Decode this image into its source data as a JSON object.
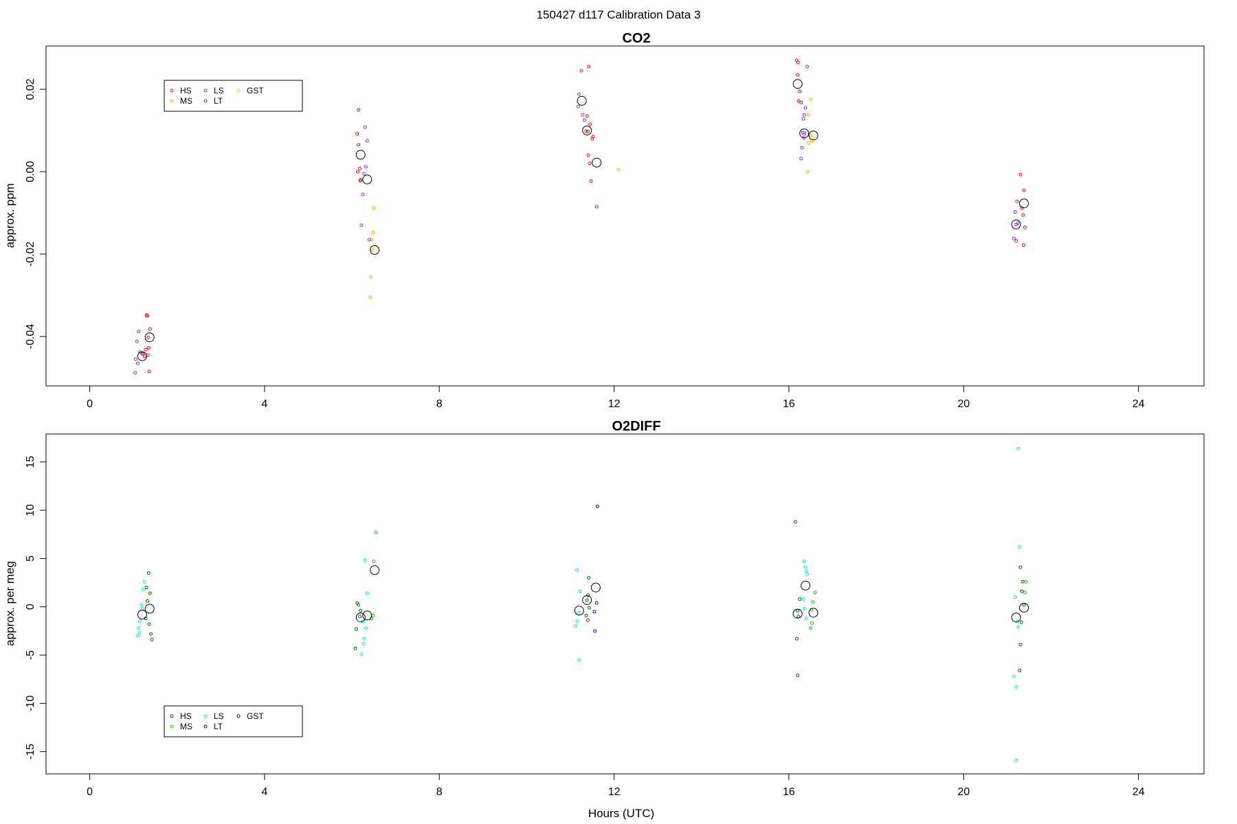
{
  "figure_title": "150427   d117   Calibration Data 3",
  "chart_data": [
    {
      "type": "scatter",
      "title": "CO2",
      "xlabel": "",
      "ylabel": "approx. ppm",
      "xlim": [
        -1,
        25.5
      ],
      "ylim": [
        -0.052,
        0.0305
      ],
      "xticks": [
        0,
        4,
        8,
        12,
        16,
        20,
        24
      ],
      "yticks": [
        -0.04,
        -0.02,
        0.0,
        0.02
      ],
      "ytick_labels": [
        "-0.04",
        "-0.02",
        "0.00",
        "0.02"
      ],
      "legend": {
        "placement": "top-left",
        "entries": [
          {
            "label": "HS",
            "color": "#ff0000"
          },
          {
            "label": "MS",
            "color": "#ffa500"
          },
          {
            "label": "LS",
            "color": "#a020f0"
          },
          {
            "label": "LT",
            "color": "#b22222"
          },
          {
            "label": "GST",
            "color": "#ffd700"
          }
        ]
      },
      "series": [
        {
          "name": "HS",
          "color": "#ff0000",
          "points": [
            [
              1.3,
              -0.0348
            ],
            [
              1.32,
              -0.035
            ],
            [
              1.38,
              -0.0382
            ],
            [
              1.35,
              -0.0428
            ],
            [
              1.28,
              -0.0432
            ],
            [
              1.33,
              -0.0445
            ],
            [
              1.36,
              -0.0485
            ],
            [
              1.25,
              -0.0448
            ],
            [
              6.15,
              0.015
            ],
            [
              6.12,
              0.0092
            ],
            [
              6.15,
              0.0065
            ],
            [
              6.18,
              0.0008
            ],
            [
              6.13,
              0.0
            ],
            [
              6.2,
              -0.002
            ],
            [
              11.42,
              0.0255
            ],
            [
              11.38,
              0.0135
            ],
            [
              11.45,
              0.0115
            ],
            [
              11.36,
              0.0098
            ],
            [
              11.5,
              0.008
            ],
            [
              11.41,
              0.004
            ],
            [
              11.44,
              0.002
            ],
            [
              11.47,
              -0.0023
            ],
            [
              16.18,
              0.027
            ],
            [
              16.21,
              0.0265
            ],
            [
              16.2,
              0.0235
            ],
            [
              16.25,
              0.0195
            ],
            [
              16.22,
              0.0172
            ],
            [
              16.28,
              0.0168
            ],
            [
              21.3,
              -0.0007
            ],
            [
              21.38,
              -0.0045
            ],
            [
              21.33,
              -0.0088
            ],
            [
              21.36,
              -0.0105
            ],
            [
              21.4,
              -0.0135
            ],
            [
              21.37,
              -0.0178
            ]
          ]
        },
        {
          "name": "MS",
          "color": "#ffa500",
          "points": [
            [
              6.5,
              -0.0088
            ],
            [
              6.48,
              -0.0148
            ],
            [
              6.45,
              -0.0165
            ],
            [
              6.47,
              -0.019
            ],
            [
              6.43,
              -0.0255
            ],
            [
              6.42,
              -0.0305
            ],
            [
              16.5,
              0.0175
            ],
            [
              16.45,
              0.0138
            ],
            [
              16.48,
              0.0088
            ],
            [
              16.52,
              0.0075
            ],
            [
              16.45,
              0.007
            ],
            [
              16.43,
              0.0
            ],
            [
              12.1,
              0.0005
            ]
          ]
        },
        {
          "name": "LS",
          "color": "#a020f0",
          "points": [
            [
              1.12,
              -0.0388
            ],
            [
              1.08,
              -0.0412
            ],
            [
              1.15,
              -0.0438
            ],
            [
              1.05,
              -0.0455
            ],
            [
              1.1,
              -0.0465
            ],
            [
              1.04,
              -0.0488
            ],
            [
              1.2,
              -0.0442
            ],
            [
              6.3,
              0.0108
            ],
            [
              6.35,
              0.0075
            ],
            [
              6.32,
              0.0012
            ],
            [
              6.28,
              -0.0005
            ],
            [
              6.25,
              -0.0055
            ],
            [
              6.22,
              -0.013
            ],
            [
              6.4,
              -0.0165
            ],
            [
              11.25,
              0.0245
            ],
            [
              11.2,
              0.0188
            ],
            [
              11.18,
              0.0158
            ],
            [
              11.28,
              0.0138
            ],
            [
              11.32,
              0.0125
            ],
            [
              11.6,
              -0.0085
            ],
            [
              16.42,
              0.0255
            ],
            [
              16.38,
              0.0155
            ],
            [
              16.35,
              0.0138
            ],
            [
              16.33,
              0.0128
            ],
            [
              16.32,
              0.0095
            ],
            [
              16.36,
              0.0092
            ],
            [
              16.3,
              0.0058
            ],
            [
              16.28,
              0.0032
            ],
            [
              16.34,
              0.0082
            ],
            [
              21.18,
              -0.0098
            ],
            [
              21.22,
              -0.0072
            ],
            [
              21.24,
              -0.0125
            ],
            [
              21.2,
              -0.0128
            ],
            [
              21.15,
              -0.0162
            ],
            [
              21.2,
              -0.0168
            ]
          ]
        },
        {
          "name": "LT",
          "color": "#b22222",
          "points": [
            [
              1.34,
              -0.0402
            ],
            [
              1.22,
              -0.0442
            ],
            [
              6.19,
              -0.0022
            ],
            [
              11.4,
              0.0098
            ],
            [
              11.52,
              0.0085
            ]
          ]
        },
        {
          "name": "GST",
          "color": "#ffd700",
          "points": [
            [
              16.56,
              0.0082
            ],
            [
              6.55,
              -0.0185
            ]
          ]
        },
        {
          "name": "mean",
          "color": "#000000",
          "points": [
            [
              1.2,
              -0.0448
            ],
            [
              1.37,
              -0.0402
            ],
            [
              6.2,
              0.0041
            ],
            [
              6.35,
              -0.0019
            ],
            [
              6.52,
              -0.019
            ],
            [
              11.26,
              0.0172
            ],
            [
              11.38,
              0.01
            ],
            [
              11.6,
              0.0022
            ],
            [
              16.2,
              0.0213
            ],
            [
              16.35,
              0.0093
            ],
            [
              16.56,
              0.0088
            ],
            [
              21.2,
              -0.0128
            ],
            [
              21.38,
              -0.0077
            ]
          ]
        }
      ]
    },
    {
      "type": "scatter",
      "title": "O2DIFF",
      "xlabel": "Hours (UTC)",
      "ylabel": "approx. per meg",
      "xlim": [
        -1,
        25.5
      ],
      "ylim": [
        -17.3,
        17.9
      ],
      "xticks": [
        0,
        4,
        8,
        12,
        16,
        20,
        24
      ],
      "yticks": [
        -15,
        -10,
        -5,
        0,
        5,
        10,
        15
      ],
      "ytick_labels": [
        "-15",
        "-10",
        "-5",
        "0",
        "5",
        "10",
        "15"
      ],
      "legend": {
        "placement": "bottom-left",
        "entries": [
          {
            "label": "HS",
            "color": "#006400"
          },
          {
            "label": "MS",
            "color": "#00cd00"
          },
          {
            "label": "LS",
            "color": "#00e5ee"
          },
          {
            "label": "LT",
            "color": "#0000ff"
          },
          {
            "label": "GST",
            "color": "#00008b"
          }
        ]
      },
      "series": [
        {
          "name": "HS",
          "color": "#006400",
          "points": [
            [
              1.35,
              3.5
            ],
            [
              1.3,
              2.0
            ],
            [
              1.38,
              1.4
            ],
            [
              1.32,
              0.6
            ],
            [
              1.28,
              -1.2
            ],
            [
              1.36,
              -1.8
            ],
            [
              1.4,
              -2.8
            ],
            [
              1.42,
              -3.4
            ],
            [
              6.12,
              0.4
            ],
            [
              6.15,
              0.2
            ],
            [
              6.2,
              -0.4
            ],
            [
              6.18,
              -1.0
            ],
            [
              6.1,
              -2.3
            ],
            [
              6.08,
              -4.3
            ],
            [
              11.42,
              3.0
            ],
            [
              11.4,
              1.2
            ],
            [
              11.38,
              0.7
            ],
            [
              11.43,
              -0.1
            ],
            [
              11.36,
              -0.9
            ],
            [
              11.4,
              -1.4
            ],
            [
              16.15,
              8.8
            ],
            [
              16.25,
              0.8
            ],
            [
              16.2,
              -0.4
            ],
            [
              16.22,
              -1.0
            ],
            [
              16.18,
              -3.3
            ],
            [
              16.2,
              -7.1
            ],
            [
              21.3,
              4.1
            ],
            [
              21.35,
              2.6
            ],
            [
              21.33,
              1.6
            ],
            [
              21.38,
              0.2
            ],
            [
              21.32,
              -1.6
            ],
            [
              21.3,
              -3.9
            ],
            [
              21.28,
              -6.6
            ]
          ]
        },
        {
          "name": "MS",
          "color": "#00cd00",
          "points": [
            [
              6.55,
              7.7
            ],
            [
              6.5,
              4.7
            ],
            [
              6.48,
              -0.9
            ],
            [
              6.45,
              -1.2
            ],
            [
              16.6,
              1.5
            ],
            [
              16.55,
              0.5
            ],
            [
              16.52,
              -0.3
            ],
            [
              16.53,
              -1.7
            ],
            [
              16.5,
              -2.2
            ],
            [
              21.4,
              1.5
            ],
            [
              21.42,
              2.6
            ]
          ]
        },
        {
          "name": "LS",
          "color": "#00e5ee",
          "points": [
            [
              1.25,
              2.6
            ],
            [
              1.22,
              1.8
            ],
            [
              1.18,
              0.2
            ],
            [
              1.2,
              -0.2
            ],
            [
              1.15,
              -1.5
            ],
            [
              1.12,
              -2.2
            ],
            [
              1.14,
              -2.7
            ],
            [
              1.1,
              -3.0
            ],
            [
              6.3,
              4.8
            ],
            [
              6.35,
              1.4
            ],
            [
              6.25,
              -1.5
            ],
            [
              6.32,
              -2.2
            ],
            [
              6.28,
              -3.3
            ],
            [
              6.27,
              -3.8
            ],
            [
              6.22,
              -4.9
            ],
            [
              11.15,
              3.8
            ],
            [
              11.22,
              1.6
            ],
            [
              11.18,
              -0.6
            ],
            [
              11.16,
              -1.5
            ],
            [
              11.12,
              -2.0
            ],
            [
              11.2,
              -5.5
            ],
            [
              16.35,
              4.7
            ],
            [
              16.38,
              4.1
            ],
            [
              16.42,
              3.4
            ],
            [
              16.4,
              3.7
            ],
            [
              16.33,
              0.8
            ],
            [
              16.36,
              -0.2
            ],
            [
              16.4,
              -1.2
            ],
            [
              21.25,
              16.4
            ],
            [
              21.28,
              6.2
            ],
            [
              21.18,
              1.0
            ],
            [
              21.22,
              -1.5
            ],
            [
              21.25,
              -2.1
            ],
            [
              21.15,
              -7.2
            ],
            [
              21.2,
              -8.3
            ],
            [
              21.2,
              -15.9
            ]
          ]
        },
        {
          "name": "LT",
          "color": "#0000ff",
          "points": [
            [
              11.6,
              0.4
            ],
            [
              11.55,
              -0.5
            ],
            [
              11.56,
              -2.5
            ]
          ]
        },
        {
          "name": "GST",
          "color": "#00008b",
          "points": [
            [
              11.62,
              10.4
            ]
          ]
        },
        {
          "name": "mean",
          "color": "#000000",
          "points": [
            [
              1.2,
              -0.8
            ],
            [
              1.37,
              -0.2
            ],
            [
              6.2,
              -1.1
            ],
            [
              6.35,
              -0.9
            ],
            [
              6.52,
              3.8
            ],
            [
              11.2,
              -0.4
            ],
            [
              11.38,
              0.7
            ],
            [
              11.58,
              2.0
            ],
            [
              16.2,
              -0.7
            ],
            [
              16.38,
              2.2
            ],
            [
              16.56,
              -0.6
            ],
            [
              21.2,
              -1.1
            ],
            [
              21.38,
              -0.1
            ]
          ]
        }
      ]
    }
  ]
}
